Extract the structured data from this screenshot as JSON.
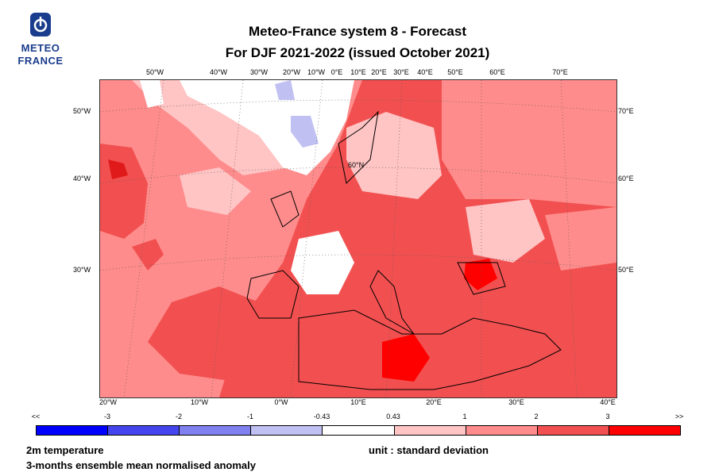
{
  "logo": {
    "line1": "METEO",
    "line2": "FRANCE"
  },
  "title": {
    "line1": "Meteo-France system 8  -  Forecast",
    "line2": "For DJF 2021-2022      (issued October 2021)"
  },
  "map": {
    "top_labels": [
      "50°W",
      "40°W",
      "30°W",
      "20°W",
      "10°W",
      "0°E",
      "10°E",
      "20°E",
      "30°E",
      "40°E",
      "50°E",
      "60°E",
      "70°E"
    ],
    "bottom_labels": [
      "20°W",
      "10°W",
      "0°W",
      "10°E",
      "20°E",
      "30°E",
      "40°E"
    ],
    "left_labels": [
      "50°W",
      "40°W",
      "30°W"
    ],
    "right_labels": [
      "70°E",
      "60°E",
      "50°E"
    ],
    "parallel_label": "60°N"
  },
  "legend": {
    "ticks": [
      "<<",
      "-3",
      "-2",
      "-1",
      "-0.43",
      "0.43",
      "1",
      "2",
      "3",
      ">>"
    ],
    "colors": [
      "#0000ff",
      "#4545ee",
      "#8080ee",
      "#c0c0f2",
      "#ffffff",
      "#ffc4c4",
      "#ff8c8c",
      "#f25050",
      "#ff0000"
    ]
  },
  "footer": {
    "variable": "2m temperature",
    "unit": "unit : standard deviation",
    "description": "3-months ensemble mean normalised anomaly"
  }
}
